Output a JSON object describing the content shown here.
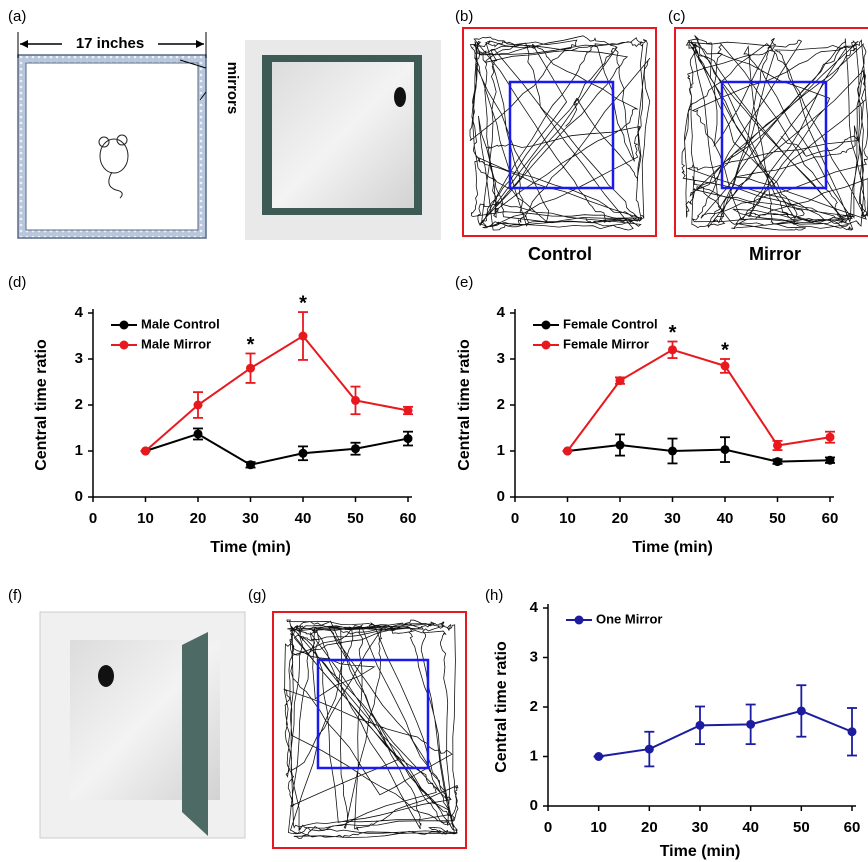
{
  "panels": {
    "a": {
      "label": "(a)",
      "dimension": "17 inches",
      "mirrors": "mirrors"
    },
    "b": {
      "label": "(b)",
      "caption": "Control"
    },
    "c": {
      "label": "(c)",
      "caption": "Mirror"
    },
    "f": {
      "label": "(f)"
    },
    "g": {
      "label": "(g)"
    }
  },
  "chart_data": [
    {
      "type": "line",
      "panel_label": "(d)",
      "x_label": "Time (min)",
      "y_label": "Central time ratio",
      "xlim": [
        0,
        60
      ],
      "xticks": [
        0,
        10,
        20,
        30,
        40,
        50,
        60
      ],
      "ylim": [
        0,
        4
      ],
      "yticks": [
        0,
        1,
        2,
        3,
        4
      ],
      "legend": "upper left",
      "x": [
        10,
        20,
        30,
        40,
        50,
        60
      ],
      "series": [
        {
          "name": "Male Control",
          "color": "#000000",
          "values": [
            1,
            1.37,
            0.7,
            0.95,
            1.05,
            1.27
          ],
          "errors": [
            0,
            0.12,
            0.06,
            0.15,
            0.13,
            0.15
          ]
        },
        {
          "name": "Male Mirror",
          "color": "#e8191e",
          "values": [
            1,
            2,
            2.8,
            3.5,
            2.1,
            1.88
          ],
          "errors": [
            0,
            0.28,
            0.32,
            0.52,
            0.3,
            0.08
          ]
        }
      ],
      "annotations": [
        {
          "text": "*",
          "x": 30
        },
        {
          "text": "*",
          "x": 40
        }
      ]
    },
    {
      "type": "line",
      "panel_label": "(e)",
      "x_label": "Time (min)",
      "y_label": "Central time ratio",
      "xlim": [
        0,
        60
      ],
      "xticks": [
        0,
        10,
        20,
        30,
        40,
        50,
        60
      ],
      "ylim": [
        0,
        4
      ],
      "yticks": [
        0,
        1,
        2,
        3,
        4
      ],
      "legend": "upper left",
      "x": [
        10,
        20,
        30,
        40,
        50,
        60
      ],
      "series": [
        {
          "name": "Female Control",
          "color": "#000000",
          "values": [
            1,
            1.13,
            1.0,
            1.03,
            0.77,
            0.8
          ],
          "errors": [
            0,
            0.23,
            0.27,
            0.27,
            0.05,
            0.06
          ]
        },
        {
          "name": "Female Mirror",
          "color": "#e8191e",
          "values": [
            1,
            2.53,
            3.2,
            2.85,
            1.12,
            1.3
          ],
          "errors": [
            0,
            0.07,
            0.18,
            0.15,
            0.1,
            0.12
          ]
        }
      ],
      "annotations": [
        {
          "text": "*",
          "x": 30
        },
        {
          "text": "*",
          "x": 40
        }
      ]
    },
    {
      "type": "line",
      "panel_label": "(h)",
      "x_label": "Time (min)",
      "y_label": "Central time ratio",
      "xlim": [
        0,
        60
      ],
      "xticks": [
        0,
        10,
        20,
        30,
        40,
        50,
        60
      ],
      "ylim": [
        0,
        4
      ],
      "yticks": [
        0,
        1,
        2,
        3,
        4
      ],
      "legend": "upper left",
      "x": [
        10,
        20,
        30,
        40,
        50,
        60
      ],
      "series": [
        {
          "name": "One Mirror",
          "color": "#1c1ca0",
          "values": [
            1,
            1.15,
            1.63,
            1.65,
            1.92,
            1.5
          ],
          "errors": [
            0,
            0.35,
            0.38,
            0.4,
            0.52,
            0.48
          ]
        }
      ]
    }
  ]
}
